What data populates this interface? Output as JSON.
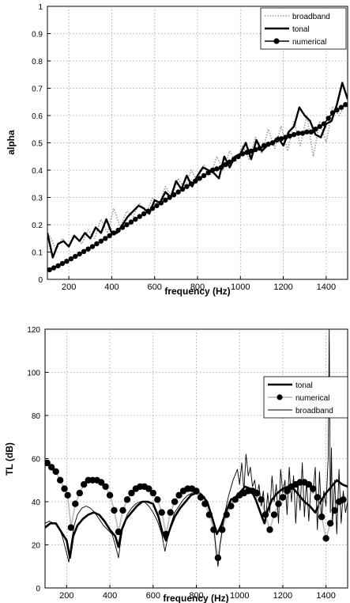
{
  "chart_data": [
    {
      "type": "line",
      "xlabel": "frequency (Hz)",
      "ylabel": "alpha",
      "xlim": [
        100,
        1500
      ],
      "ylim": [
        0,
        1
      ],
      "xticks": [
        200,
        400,
        600,
        800,
        1000,
        1200,
        1400
      ],
      "yticks": [
        0,
        0.1,
        0.2,
        0.3,
        0.4,
        0.5,
        0.6,
        0.7,
        0.8,
        0.9,
        1
      ],
      "grid": true,
      "legend_position": "top-right",
      "series": [
        {
          "name": "broadband",
          "style": "dotted",
          "color": "#9a9a9a",
          "x": [
            110,
            140,
            170,
            200,
            230,
            260,
            290,
            320,
            350,
            380,
            410,
            440,
            470,
            500,
            530,
            560,
            590,
            620,
            650,
            680,
            710,
            740,
            770,
            800,
            830,
            860,
            890,
            920,
            950,
            980,
            1010,
            1040,
            1070,
            1100,
            1130,
            1160,
            1190,
            1220,
            1250,
            1280,
            1310,
            1340,
            1370,
            1400,
            1430,
            1460,
            1490
          ],
          "y": [
            0.16,
            0.11,
            0.15,
            0.12,
            0.16,
            0.13,
            0.18,
            0.15,
            0.22,
            0.17,
            0.26,
            0.19,
            0.25,
            0.23,
            0.28,
            0.24,
            0.3,
            0.27,
            0.34,
            0.3,
            0.37,
            0.33,
            0.4,
            0.36,
            0.42,
            0.38,
            0.45,
            0.4,
            0.47,
            0.43,
            0.49,
            0.44,
            0.52,
            0.46,
            0.55,
            0.48,
            0.56,
            0.47,
            0.58,
            0.49,
            0.6,
            0.45,
            0.58,
            0.5,
            0.63,
            0.6,
            0.64
          ]
        },
        {
          "name": "tonal",
          "style": "solid",
          "color": "#000000",
          "x": [
            100,
            125,
            150,
            175,
            200,
            225,
            250,
            275,
            300,
            325,
            350,
            375,
            400,
            425,
            450,
            475,
            500,
            525,
            550,
            575,
            600,
            625,
            650,
            675,
            700,
            725,
            750,
            775,
            800,
            825,
            850,
            875,
            900,
            925,
            950,
            975,
            1000,
            1025,
            1050,
            1075,
            1100,
            1125,
            1150,
            1175,
            1200,
            1225,
            1250,
            1275,
            1300,
            1325,
            1350,
            1375,
            1400,
            1425,
            1450,
            1475,
            1500
          ],
          "y": [
            0.17,
            0.08,
            0.13,
            0.14,
            0.12,
            0.16,
            0.14,
            0.17,
            0.15,
            0.19,
            0.17,
            0.22,
            0.17,
            0.17,
            0.2,
            0.23,
            0.25,
            0.27,
            0.26,
            0.24,
            0.29,
            0.28,
            0.32,
            0.3,
            0.36,
            0.33,
            0.38,
            0.34,
            0.38,
            0.41,
            0.4,
            0.39,
            0.37,
            0.45,
            0.41,
            0.45,
            0.46,
            0.5,
            0.44,
            0.51,
            0.47,
            0.49,
            0.5,
            0.52,
            0.49,
            0.54,
            0.56,
            0.63,
            0.6,
            0.58,
            0.53,
            0.52,
            0.57,
            0.58,
            0.64,
            0.72,
            0.66
          ]
        },
        {
          "name": "numerical",
          "style": "solid-markers",
          "color": "#000000",
          "x": [
            110,
            130,
            150,
            170,
            190,
            210,
            230,
            250,
            270,
            290,
            310,
            330,
            350,
            370,
            390,
            410,
            430,
            450,
            470,
            490,
            510,
            530,
            550,
            570,
            590,
            610,
            630,
            650,
            670,
            690,
            710,
            730,
            750,
            770,
            790,
            810,
            830,
            850,
            870,
            890,
            910,
            930,
            950,
            970,
            990,
            1010,
            1030,
            1050,
            1070,
            1090,
            1110,
            1130,
            1150,
            1170,
            1190,
            1210,
            1230,
            1250,
            1270,
            1290,
            1310,
            1330,
            1350,
            1370,
            1390,
            1410,
            1430,
            1450,
            1470,
            1490
          ],
          "y": [
            0.035,
            0.042,
            0.05,
            0.058,
            0.066,
            0.075,
            0.084,
            0.093,
            0.102,
            0.111,
            0.12,
            0.13,
            0.14,
            0.15,
            0.16,
            0.17,
            0.18,
            0.19,
            0.2,
            0.21,
            0.22,
            0.23,
            0.24,
            0.25,
            0.26,
            0.27,
            0.28,
            0.29,
            0.3,
            0.31,
            0.32,
            0.33,
            0.34,
            0.35,
            0.36,
            0.37,
            0.38,
            0.39,
            0.4,
            0.405,
            0.41,
            0.42,
            0.43,
            0.44,
            0.45,
            0.46,
            0.465,
            0.47,
            0.475,
            0.48,
            0.49,
            0.495,
            0.5,
            0.51,
            0.515,
            0.52,
            0.525,
            0.53,
            0.535,
            0.535,
            0.54,
            0.54,
            0.55,
            0.56,
            0.57,
            0.59,
            0.61,
            0.62,
            0.63,
            0.64
          ]
        }
      ]
    },
    {
      "type": "line",
      "xlabel": "frequency (Hz)",
      "ylabel": "TL (dB)",
      "xlim": [
        100,
        1500
      ],
      "ylim": [
        0,
        120
      ],
      "xticks": [
        200,
        400,
        600,
        800,
        1000,
        1200,
        1400
      ],
      "yticks": [
        0,
        20,
        40,
        60,
        80,
        100,
        120
      ],
      "grid": true,
      "legend_position": "top-right",
      "series": [
        {
          "name": "tonal",
          "style": "thick-solid",
          "color": "#000000",
          "x": [
            100,
            125,
            150,
            175,
            200,
            215,
            230,
            250,
            275,
            300,
            325,
            350,
            375,
            400,
            425,
            440,
            455,
            475,
            500,
            525,
            550,
            575,
            600,
            625,
            645,
            660,
            680,
            700,
            725,
            750,
            775,
            800,
            825,
            850,
            875,
            895,
            915,
            940,
            960,
            980,
            1000,
            1025,
            1050,
            1075,
            1100,
            1115,
            1130,
            1150,
            1175,
            1200,
            1225,
            1250,
            1275,
            1300,
            1325,
            1350,
            1375,
            1400,
            1425,
            1450,
            1475,
            1500
          ],
          "y": [
            28,
            30,
            30,
            26,
            22,
            14,
            24,
            29,
            32,
            34,
            35,
            34,
            31,
            27,
            24,
            19,
            27,
            32,
            35,
            38,
            40,
            40,
            39,
            33,
            25,
            22,
            28,
            33,
            37,
            40,
            43,
            44,
            43,
            40,
            32,
            25,
            29,
            36,
            41,
            42,
            44,
            47,
            46,
            41,
            34,
            30,
            36,
            41,
            44,
            46,
            47,
            46,
            43,
            40,
            38,
            35,
            40,
            44,
            47,
            50,
            48,
            47
          ]
        },
        {
          "name": "numerical",
          "style": "gray-markers",
          "color": "#c0c0c0",
          "x": [
            110,
            130,
            150,
            170,
            190,
            205,
            220,
            240,
            260,
            280,
            300,
            320,
            340,
            360,
            380,
            400,
            420,
            440,
            460,
            480,
            500,
            520,
            540,
            560,
            580,
            600,
            620,
            640,
            660,
            680,
            700,
            720,
            740,
            760,
            780,
            800,
            820,
            840,
            860,
            880,
            900,
            920,
            940,
            960,
            980,
            1000,
            1020,
            1040,
            1060,
            1080,
            1100,
            1120,
            1140,
            1160,
            1180,
            1200,
            1220,
            1240,
            1260,
            1280,
            1300,
            1320,
            1340,
            1360,
            1380,
            1400,
            1420,
            1440,
            1460,
            1480
          ],
          "y": [
            58,
            56,
            54,
            50,
            46,
            43,
            28,
            39,
            44,
            48,
            50,
            50,
            50,
            49,
            47,
            43,
            36,
            26,
            36,
            41,
            44,
            46,
            47,
            47,
            46,
            44,
            41,
            35,
            25,
            35,
            40,
            43,
            45,
            46,
            46,
            45,
            42,
            39,
            34,
            27,
            14,
            27,
            34,
            38,
            41,
            43,
            44,
            45,
            45,
            44,
            41,
            34,
            27,
            34,
            39,
            42,
            45,
            47,
            48,
            49,
            49,
            48,
            46,
            42,
            33,
            23,
            30,
            36,
            40,
            41
          ]
        },
        {
          "name": "broadband",
          "style": "thin-solid",
          "color": "#000000",
          "x": [
            100,
            120,
            140,
            160,
            180,
            200,
            210,
            220,
            235,
            250,
            270,
            290,
            310,
            330,
            350,
            370,
            390,
            410,
            425,
            440,
            450,
            460,
            480,
            500,
            520,
            540,
            560,
            580,
            600,
            620,
            640,
            655,
            665,
            680,
            700,
            720,
            740,
            760,
            780,
            800,
            820,
            840,
            860,
            880,
            890,
            900,
            910,
            930,
            950,
            970,
            990,
            1000,
            1010,
            1020,
            1030,
            1040,
            1050,
            1060,
            1070,
            1080,
            1090,
            1100,
            1110,
            1120,
            1130,
            1140,
            1150,
            1160,
            1170,
            1180,
            1190,
            1200,
            1210,
            1220,
            1230,
            1240,
            1250,
            1260,
            1270,
            1280,
            1290,
            1300,
            1310,
            1320,
            1330,
            1340,
            1350,
            1360,
            1370,
            1380,
            1390,
            1400,
            1410,
            1415,
            1420,
            1425,
            1430,
            1440,
            1450,
            1460,
            1470,
            1480,
            1490,
            1500
          ],
          "y": [
            30,
            31,
            30,
            29,
            24,
            16,
            12,
            20,
            29,
            34,
            37,
            38,
            37,
            35,
            32,
            29,
            27,
            25,
            20,
            14,
            22,
            28,
            34,
            37,
            39,
            40,
            40,
            38,
            35,
            31,
            25,
            17,
            22,
            29,
            35,
            38,
            41,
            43,
            44,
            45,
            44,
            42,
            37,
            30,
            18,
            10,
            20,
            34,
            43,
            50,
            55,
            48,
            58,
            45,
            62,
            52,
            56,
            47,
            50,
            42,
            48,
            38,
            45,
            30,
            44,
            35,
            52,
            40,
            48,
            30,
            55,
            44,
            50,
            34,
            56,
            40,
            52,
            30,
            49,
            36,
            58,
            33,
            50,
            31,
            47,
            44,
            56,
            27,
            54,
            32,
            45,
            38,
            60,
            120,
            35,
            65,
            30,
            50,
            25,
            55,
            30,
            45,
            35,
            40
          ]
        }
      ]
    }
  ]
}
